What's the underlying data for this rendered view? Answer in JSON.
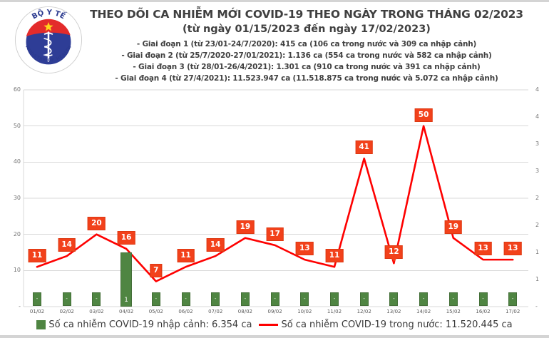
{
  "logo": {
    "top_text": "BỘ Y TẾ",
    "bottom_text": "MINISTRY OF HEALTH"
  },
  "header": {
    "title": "THEO DÕI CA NHIỄM MỚI COVID-19 THEO NGÀY TRONG THÁNG 02/2023",
    "subtitle": "(từ ngày 01/15/2023 đến ngày 17/02/2023)",
    "phases": [
      "- Giai đoạn 1 (từ 23/01-24/7/2020): 415 ca (106 ca trong nước và 309 ca nhập cảnh)",
      "- Giai đoạn 2 (từ 25/7/2020-27/01/2021): 1.136 ca (554 ca trong nước và 582 ca nhập cảnh)",
      "- Giai đoạn 3 (từ 28/01-26/4/2021): 1.301 ca (910 ca trong nước và 391 ca nhập cảnh)",
      "- Giai đoạn 4 (từ 27/4/2021): 11.523.947 ca (11.518.875 ca trong nước và 5.072 ca nhập cảnh)"
    ]
  },
  "colors": {
    "line": "#fe0000",
    "line_label_bg": "#f2411b",
    "bar_green": "#4f8542",
    "grid": "#d9d9d9",
    "axis_text": "#737373",
    "title_text": "#404040"
  },
  "chart_data": {
    "type": "combo-bar-line",
    "categories": [
      "01/02",
      "02/02",
      "03/02",
      "04/02",
      "05/02",
      "06/02",
      "07/02",
      "08/02",
      "09/02",
      "10/02",
      "11/02",
      "12/02",
      "13/02",
      "14/02",
      "15/02",
      "16/02",
      "17/02"
    ],
    "series": [
      {
        "name": "Số ca nhiễm COVID-19 nhập cảnh: 6.354 ca",
        "type": "bar",
        "axis": "right",
        "values": [
          0,
          0,
          0,
          1,
          0,
          0,
          0,
          0,
          0,
          0,
          0,
          0,
          0,
          0,
          0,
          0,
          0
        ],
        "labels": [
          "-",
          "-",
          "-",
          "1",
          "-",
          "-",
          "-",
          "-",
          "-",
          "-",
          "-",
          "-",
          "-",
          "-",
          "-",
          "-",
          "-"
        ]
      },
      {
        "name": "Số ca nhiễm COVID-19 trong nước: 11.520.445 ca",
        "type": "line",
        "axis": "left",
        "values": [
          11,
          14,
          20,
          16,
          7,
          11,
          14,
          19,
          17,
          13,
          11,
          41,
          12,
          50,
          19,
          13,
          13
        ],
        "callout_label_index": 12
      }
    ],
    "left_axis": {
      "min": 0,
      "max": 60,
      "step": 10,
      "tick_labels_top_to_bottom": [
        "60",
        "50",
        "40",
        "30",
        "20",
        "10",
        "-"
      ]
    },
    "right_axis": {
      "min": 0,
      "max": 4,
      "step": 0.5,
      "tick_labels_top_to_bottom": [
        "4",
        "4",
        "3",
        "3",
        "2",
        "2",
        "1",
        "1",
        "-"
      ]
    },
    "grid": true,
    "legend_position": "bottom"
  }
}
